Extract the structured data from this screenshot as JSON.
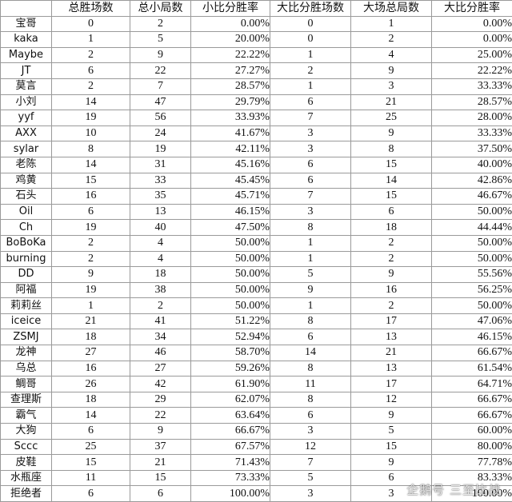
{
  "table": {
    "headers": [
      "",
      "总胜场数",
      "总小局数",
      "小比分胜率",
      "大比分胜场数",
      "大场总局数",
      "大比分胜率"
    ],
    "rows": [
      [
        "宝哥",
        "0",
        "2",
        "0.00%",
        "0",
        "1",
        "0.00%"
      ],
      [
        "kaka",
        "1",
        "5",
        "20.00%",
        "0",
        "2",
        "0.00%"
      ],
      [
        "Maybe",
        "2",
        "9",
        "22.22%",
        "1",
        "4",
        "25.00%"
      ],
      [
        "JT",
        "6",
        "22",
        "27.27%",
        "2",
        "9",
        "22.22%"
      ],
      [
        "莫言",
        "2",
        "7",
        "28.57%",
        "1",
        "3",
        "33.33%"
      ],
      [
        "小刘",
        "14",
        "47",
        "29.79%",
        "6",
        "21",
        "28.57%"
      ],
      [
        "yyf",
        "19",
        "56",
        "33.93%",
        "7",
        "25",
        "28.00%"
      ],
      [
        "AXX",
        "10",
        "24",
        "41.67%",
        "3",
        "9",
        "33.33%"
      ],
      [
        "sylar",
        "8",
        "19",
        "42.11%",
        "3",
        "8",
        "37.50%"
      ],
      [
        "老陈",
        "14",
        "31",
        "45.16%",
        "6",
        "15",
        "40.00%"
      ],
      [
        "鸡黄",
        "15",
        "33",
        "45.45%",
        "6",
        "14",
        "42.86%"
      ],
      [
        "石头",
        "16",
        "35",
        "45.71%",
        "7",
        "15",
        "46.67%"
      ],
      [
        "Oil",
        "6",
        "13",
        "46.15%",
        "3",
        "6",
        "50.00%"
      ],
      [
        "Ch",
        "19",
        "40",
        "47.50%",
        "8",
        "18",
        "44.44%"
      ],
      [
        "BoBoKa",
        "2",
        "4",
        "50.00%",
        "1",
        "2",
        "50.00%"
      ],
      [
        "burning",
        "2",
        "4",
        "50.00%",
        "1",
        "2",
        "50.00%"
      ],
      [
        "DD",
        "9",
        "18",
        "50.00%",
        "5",
        "9",
        "55.56%"
      ],
      [
        "阿福",
        "19",
        "38",
        "50.00%",
        "9",
        "16",
        "56.25%"
      ],
      [
        "莉莉丝",
        "1",
        "2",
        "50.00%",
        "1",
        "2",
        "50.00%"
      ],
      [
        "iceice",
        "21",
        "41",
        "51.22%",
        "8",
        "17",
        "47.06%"
      ],
      [
        "ZSMJ",
        "18",
        "34",
        "52.94%",
        "6",
        "13",
        "46.15%"
      ],
      [
        "龙神",
        "27",
        "46",
        "58.70%",
        "14",
        "21",
        "66.67%"
      ],
      [
        "乌总",
        "16",
        "27",
        "59.26%",
        "8",
        "13",
        "61.54%"
      ],
      [
        "鲷哥",
        "26",
        "42",
        "61.90%",
        "11",
        "17",
        "64.71%"
      ],
      [
        "查理斯",
        "18",
        "29",
        "62.07%",
        "8",
        "12",
        "66.67%"
      ],
      [
        "霸气",
        "14",
        "22",
        "63.64%",
        "6",
        "9",
        "66.67%"
      ],
      [
        "大狗",
        "6",
        "9",
        "66.67%",
        "3",
        "5",
        "60.00%"
      ],
      [
        "Sccc",
        "25",
        "37",
        "67.57%",
        "12",
        "15",
        "80.00%"
      ],
      [
        "皮鞋",
        "15",
        "21",
        "71.43%",
        "7",
        "9",
        "77.78%"
      ],
      [
        "水瓶座",
        "11",
        "15",
        "73.33%",
        "5",
        "6",
        "83.33%"
      ],
      [
        "拒绝者",
        "6",
        "6",
        "100.00%",
        "3",
        "3",
        "100.00%"
      ]
    ]
  },
  "watermark": "企鹅号 三至比战"
}
